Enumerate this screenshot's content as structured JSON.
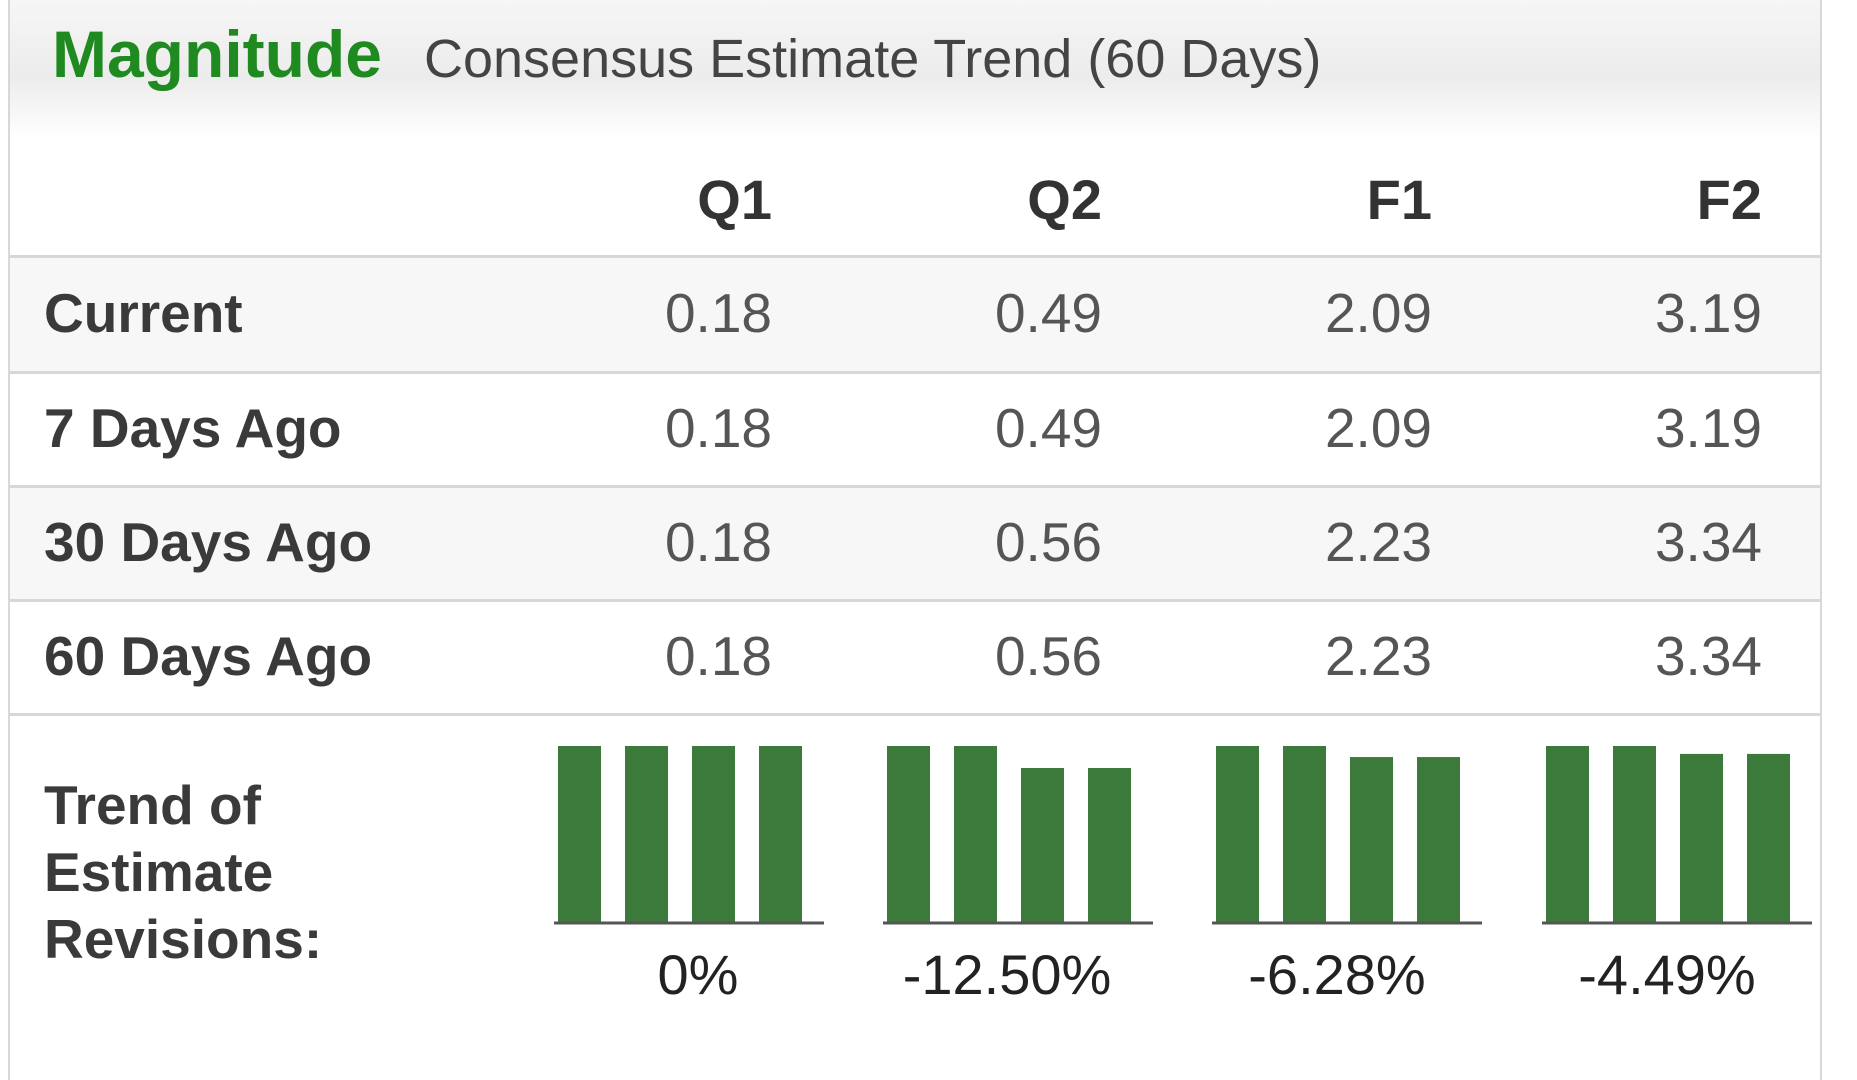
{
  "header": {
    "brand": "Magnitude",
    "subtitle": "Consensus Estimate Trend (60 Days)"
  },
  "columns": [
    "Q1",
    "Q2",
    "F1",
    "F2"
  ],
  "rows": [
    {
      "label": "Current",
      "values": [
        "0.18",
        "0.49",
        "2.09",
        "3.19"
      ]
    },
    {
      "label": "7 Days Ago",
      "values": [
        "0.18",
        "0.49",
        "2.09",
        "3.19"
      ]
    },
    {
      "label": "30 Days Ago",
      "values": [
        "0.18",
        "0.56",
        "2.23",
        "3.34"
      ]
    },
    {
      "label": "60 Days Ago",
      "values": [
        "0.18",
        "0.56",
        "2.23",
        "3.34"
      ]
    }
  ],
  "trend": {
    "label_lines": [
      "Trend of",
      "Estimate",
      "Revisions:"
    ]
  },
  "chart_data": {
    "type": "bar",
    "color": "#3b7a3b",
    "groups": [
      {
        "name": "Q1",
        "values": [
          0.18,
          0.18,
          0.18,
          0.18
        ],
        "percent_label": "0%"
      },
      {
        "name": "Q2",
        "values": [
          0.56,
          0.56,
          0.49,
          0.49
        ],
        "percent_label": "-12.50%"
      },
      {
        "name": "F1",
        "values": [
          2.23,
          2.23,
          2.09,
          2.09
        ],
        "percent_label": "-6.28%"
      },
      {
        "name": "F2",
        "values": [
          3.34,
          3.34,
          3.19,
          3.19
        ],
        "percent_label": "-4.49%"
      }
    ]
  }
}
